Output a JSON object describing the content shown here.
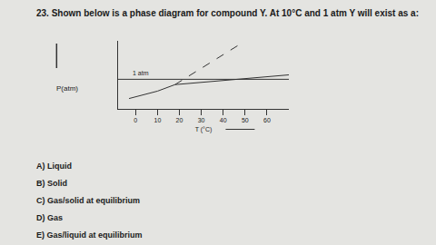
{
  "question": {
    "number": "23.",
    "text": "Shown below is a phase diagram for compound Y. At 10°C and 1 atm Y will exist as a:"
  },
  "chart_data": {
    "type": "line",
    "x_label": "T (°C)",
    "y_label": "P(atm)",
    "xlim": [
      -8,
      70
    ],
    "xticks": [
      0,
      10,
      20,
      30,
      40,
      50,
      60
    ],
    "ylim": [
      0,
      2.3
    ],
    "yticks": [],
    "tick_labels": "x",
    "grid": false,
    "color": "#333333",
    "series": [
      {
        "x": [
          -8,
          70
        ],
        "values": [
          1,
          1
        ],
        "line_style": "solid",
        "label": "1 atm"
      },
      {
        "x": [
          -3,
          10,
          18
        ],
        "values": [
          0.35,
          0.6,
          0.82
        ],
        "line_style": "solid"
      },
      {
        "x": [
          18,
          70
        ],
        "values": [
          0.82,
          1.15
        ],
        "line_style": "solid"
      },
      {
        "x": [
          18,
          48
        ],
        "values": [
          0.82,
          2.2
        ],
        "line_style": "dashed"
      }
    ]
  },
  "options": [
    {
      "letter": "A)",
      "text": "Liquid"
    },
    {
      "letter": "B)",
      "text": "Solid"
    },
    {
      "letter": "C)",
      "text": "Gas/solid at equilibrium"
    },
    {
      "letter": "D)",
      "text": "Gas"
    },
    {
      "letter": "E)",
      "text": "Gas/liquid at equilibrium"
    }
  ]
}
